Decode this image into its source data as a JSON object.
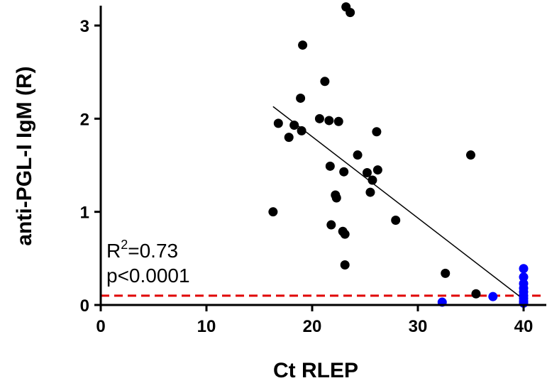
{
  "chart_data": {
    "type": "scatter",
    "xlabel": "Ct RLEP",
    "ylabel": "anti-PGL-I IgM (R)",
    "xlim": [
      0,
      42
    ],
    "ylim": [
      0,
      3.25
    ],
    "x_ticks": [
      0,
      10,
      20,
      30,
      40
    ],
    "y_ticks": [
      0,
      1,
      2,
      3
    ],
    "grid": false,
    "series": [
      {
        "color": "#000000",
        "points": [
          [
            16.3,
            1.0
          ],
          [
            16.8,
            1.95
          ],
          [
            17.8,
            1.8
          ],
          [
            18.3,
            1.93
          ],
          [
            18.9,
            2.22
          ],
          [
            19.0,
            1.87
          ],
          [
            19.1,
            2.79
          ],
          [
            20.7,
            2.0
          ],
          [
            21.2,
            2.4
          ],
          [
            21.6,
            1.98
          ],
          [
            21.7,
            1.49
          ],
          [
            21.8,
            0.86
          ],
          [
            22.2,
            1.18
          ],
          [
            22.3,
            1.15
          ],
          [
            22.5,
            1.97
          ],
          [
            22.9,
            0.79
          ],
          [
            23.0,
            1.43
          ],
          [
            23.1,
            0.76
          ],
          [
            23.1,
            0.43
          ],
          [
            23.2,
            3.2
          ],
          [
            23.6,
            3.14
          ],
          [
            24.3,
            1.61
          ],
          [
            25.2,
            1.42
          ],
          [
            25.5,
            1.21
          ],
          [
            25.7,
            1.34
          ],
          [
            26.1,
            1.86
          ],
          [
            26.2,
            1.45
          ],
          [
            27.9,
            0.91
          ],
          [
            32.6,
            0.34
          ],
          [
            35.0,
            1.61
          ],
          [
            35.5,
            0.12
          ]
        ]
      },
      {
        "color": "#0000ff",
        "points": [
          [
            32.3,
            0.03
          ],
          [
            37.1,
            0.09
          ],
          [
            40.0,
            0.39
          ],
          [
            40.0,
            0.3
          ],
          [
            40.0,
            0.23
          ],
          [
            40.0,
            0.18
          ],
          [
            40.0,
            0.14
          ],
          [
            40.0,
            0.1
          ],
          [
            40.0,
            0.07
          ],
          [
            40.0,
            0.04
          ],
          [
            40.0,
            0.02
          ]
        ]
      }
    ],
    "regression_line": {
      "x": [
        16.3,
        40.0
      ],
      "y": [
        2.13,
        0.06
      ],
      "color": "#000000"
    },
    "threshold": {
      "y": 0.1,
      "color": "#e00000",
      "style": "dashed"
    },
    "annotations": {
      "r2_base": "R",
      "r2_exp": "2",
      "r2_value": "=0.73",
      "p_value": "p<0.0001"
    }
  }
}
